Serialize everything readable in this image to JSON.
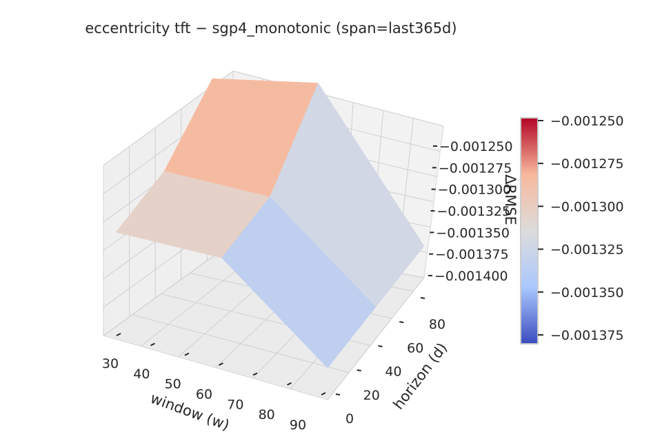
{
  "chart_data": {
    "type": "surface3d",
    "title": "eccentricity  tft − sgp4_monotonic  (span=last365d)",
    "xlabel": "window (w)",
    "ylabel": "horizon (d)",
    "zlabel": "ΔRMSE",
    "x_ticks": [
      "30",
      "40",
      "50",
      "60",
      "70",
      "80",
      "90"
    ],
    "y_ticks": [
      "0",
      "20",
      "40",
      "60",
      "80"
    ],
    "z_ticks": [
      "−0.001250",
      "−0.001275",
      "−0.001300",
      "−0.001325",
      "−0.001350",
      "−0.001375",
      "−0.001400"
    ],
    "colorbar_ticks": [
      "−0.001250",
      "−0.001275",
      "−0.001300",
      "−0.001325",
      "−0.001350",
      "−0.001375"
    ],
    "colormap": "coolwarm",
    "colormap_stops": [
      "#3b4cc0",
      "#aac7fd",
      "#dddcdc",
      "#f7b89c",
      "#b40426"
    ],
    "zlim": [
      -0.0014,
      -0.00125
    ],
    "grid": true,
    "surface": {
      "windows": [
        30,
        60,
        90
      ],
      "horizons": [
        0,
        45,
        90
      ],
      "delta_rmse": [
        [
          -0.00131,
          -0.00131,
          -0.00128
        ],
        [
          -0.0013,
          -0.0013,
          -0.00125
        ],
        [
          -0.00137,
          -0.00137,
          -0.00137
        ]
      ]
    }
  }
}
